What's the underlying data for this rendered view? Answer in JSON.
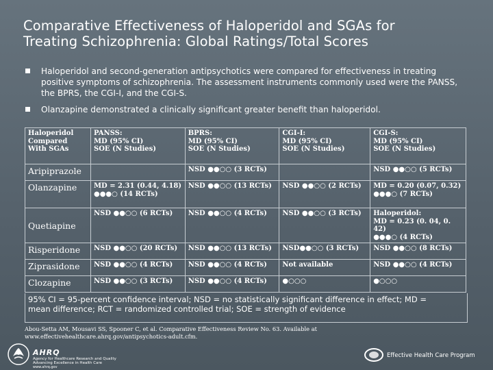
{
  "title": {
    "line1": "Comparative Effectiveness of Haloperidol and SGAs for",
    "line2": "Treating Schizophrenia: Global Ratings/Total Scores"
  },
  "bullets": [
    {
      "lines": [
        "Haloperidol and second-generation antipsychotics were compared for effectiveness in treating",
        "positive symptoms of schizophrenia. The assessment instruments commonly used were the PANSS,",
        "the BPRS, the CGI-I, and the CGI-S."
      ]
    },
    {
      "lines": [
        "Olanzapine demonstrated a clinically significant greater benefit than haloperidol."
      ]
    }
  ],
  "table": {
    "header": [
      [
        "Haloperidol",
        "Compared",
        "With SGAs"
      ],
      [
        "PANSS:",
        "MD (95% CI)",
        "SOE (N Studies)"
      ],
      [
        "BPRS:",
        "MD (95% CI)",
        "SOE (N Studies)"
      ],
      [
        "CGI-I:",
        "MD (95% CI)",
        "SOE (N Studies)"
      ],
      [
        "CGI-S:",
        "MD (95% CI)",
        "SOE (N Studies)"
      ]
    ],
    "rows": [
      {
        "name": "Aripiprazole",
        "cells": [
          [
            ""
          ],
          [
            "NSD ●●○○ (3 RCTs)"
          ],
          [
            ""
          ],
          [
            "NSD ●●○○ (5 RCTs)"
          ]
        ]
      },
      {
        "name": "Olanzapine",
        "cells": [
          [
            "MD = 2.31 (0.44, 4.18)",
            "●●●○ (14 RCTs)"
          ],
          [
            "NSD ●●○○ (13 RCTs)"
          ],
          [
            "NSD ●●○○ (2 RCTs)"
          ],
          [
            "MD = 0.20 (0.07, 0.32)",
            "●●●○ (7 RCTs)"
          ]
        ]
      },
      {
        "name": "Quetiapine",
        "cells": [
          [
            "NSD ●●○○ (6 RCTs)"
          ],
          [
            "NSD ●●○○ (4 RCTs)"
          ],
          [
            "NSD ●●○○ (3 RCTs)"
          ],
          [
            "Haloperidol:",
            "MD = 0.23 (0. 04, 0. 42)",
            "●●●○ (4 RCTs)"
          ]
        ]
      },
      {
        "name": "Risperidone",
        "cells": [
          [
            "NSD ●●○○ (20 RCTs)"
          ],
          [
            "NSD ●●○○ (13 RCTs)"
          ],
          [
            "NSD●●○○ (3 RCTs)"
          ],
          [
            "NSD ●●○○ (8 RCTs)"
          ]
        ]
      },
      {
        "name": "Ziprasidone",
        "cells": [
          [
            "NSD ●●○○ (4 RCTs)"
          ],
          [
            "NSD ●●○○ (4 RCTs)"
          ],
          [
            "Not available"
          ],
          [
            "NSD ●●○○ (4 RCTs)"
          ]
        ]
      },
      {
        "name": "Clozapine",
        "cells": [
          [
            "NSD ●●○○ (3 RCTs)"
          ],
          [
            "NSD ●●○○ (4 RCTs)"
          ],
          [
            "●○○○"
          ],
          [
            "●○○○"
          ]
        ]
      }
    ]
  },
  "footnote": {
    "line1": "95% CI = 95-percent confidence interval; NSD = no statistically significant difference in effect; MD =",
    "line2": "mean difference; RCT = randomized controlled trial; SOE = strength of evidence"
  },
  "citation": {
    "line1": "Abou-Setta AM, Mousavi SS, Spooner C, et al. Comparative Effectiveness Review No. 63. Available at",
    "line2": "www.effectivehealthcare.ahrq.gov/antipsychotics-adult.cfm."
  },
  "footer": {
    "ahrq_name": "AHRQ",
    "ahrq_agency": "Agency for Healthcare Research and Quality",
    "ahrq_tagline": "Advancing Excellence in Health Care",
    "ahrq_url": "www.ahrq.gov",
    "ehc_label": "Effective Health Care Program"
  },
  "colors": {
    "background": "#5e6b75",
    "text": "#ffffff",
    "table_border": "#c7cdd2"
  }
}
